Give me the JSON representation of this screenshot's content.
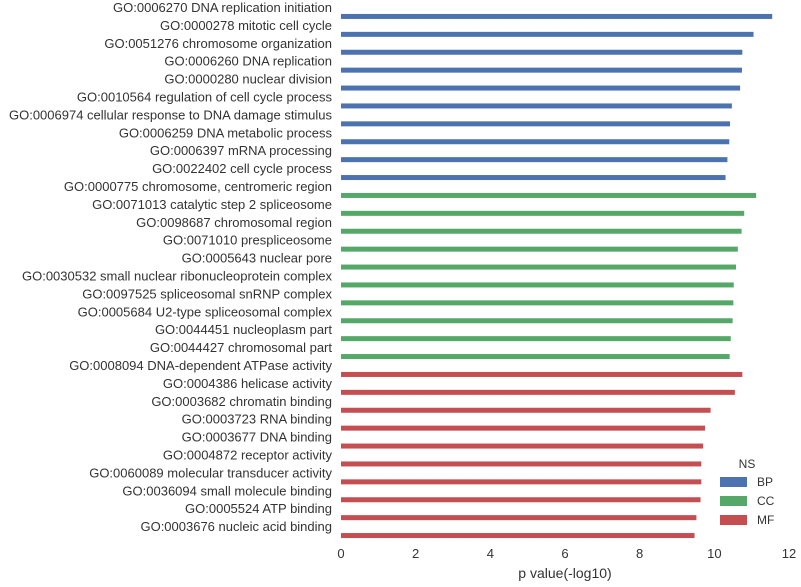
{
  "chart_data": {
    "type": "bar",
    "orientation": "horizontal",
    "xlabel": "p value(-log10)",
    "ylabel": "",
    "xlim": [
      0,
      12
    ],
    "xticks": [
      0,
      2,
      4,
      6,
      8,
      10,
      12
    ],
    "grid": false,
    "legend": {
      "title": "NS",
      "placement": "bottom-right",
      "entries": [
        {
          "name": "BP",
          "color": "#4c72b0"
        },
        {
          "name": "CC",
          "color": "#55a868"
        },
        {
          "name": "MF",
          "color": "#c44e52"
        }
      ]
    },
    "categories": [
      {
        "label": "GO:0006270 DNA replication initiation",
        "group": "BP",
        "value": 11.55
      },
      {
        "label": "GO:0000278 mitotic cell cycle",
        "group": "BP",
        "value": 11.05
      },
      {
        "label": "GO:0051276 chromosome organization",
        "group": "BP",
        "value": 10.75
      },
      {
        "label": "GO:0006260 DNA replication",
        "group": "BP",
        "value": 10.74
      },
      {
        "label": "GO:0000280 nuclear division",
        "group": "BP",
        "value": 10.69
      },
      {
        "label": "GO:0010564 regulation of cell cycle process",
        "group": "BP",
        "value": 10.47
      },
      {
        "label": "GO:0006974 cellular response to DNA damage stimulus",
        "group": "BP",
        "value": 10.42
      },
      {
        "label": "GO:0006259 DNA metabolic process",
        "group": "BP",
        "value": 10.4
      },
      {
        "label": "GO:0006397 mRNA processing",
        "group": "BP",
        "value": 10.35
      },
      {
        "label": "GO:0022402 cell cycle process",
        "group": "BP",
        "value": 10.3
      },
      {
        "label": "GO:0000775 chromosome, centromeric region",
        "group": "CC",
        "value": 11.12
      },
      {
        "label": "GO:0071013 catalytic step 2 spliceosome",
        "group": "CC",
        "value": 10.8
      },
      {
        "label": "GO:0098687 chromosomal region",
        "group": "CC",
        "value": 10.73
      },
      {
        "label": "GO:0071010 prespliceosome",
        "group": "CC",
        "value": 10.63
      },
      {
        "label": "GO:0005643 nuclear pore",
        "group": "CC",
        "value": 10.58
      },
      {
        "label": "GO:0030532 small nuclear ribonucleoprotein complex",
        "group": "CC",
        "value": 10.52
      },
      {
        "label": "GO:0097525 spliceosomal snRNP complex",
        "group": "CC",
        "value": 10.51
      },
      {
        "label": "GO:0005684 U2-type spliceosomal complex",
        "group": "CC",
        "value": 10.49
      },
      {
        "label": "GO:0044451 nucleoplasm part",
        "group": "CC",
        "value": 10.44
      },
      {
        "label": "GO:0044427 chromosomal part",
        "group": "CC",
        "value": 10.41
      },
      {
        "label": "GO:0008094 DNA-dependent ATPase activity",
        "group": "MF",
        "value": 10.75
      },
      {
        "label": "GO:0004386 helicase activity",
        "group": "MF",
        "value": 10.55
      },
      {
        "label": "GO:0003682 chromatin binding",
        "group": "MF",
        "value": 9.9
      },
      {
        "label": "GO:0003723 RNA binding",
        "group": "MF",
        "value": 9.75
      },
      {
        "label": "GO:0003677 DNA binding",
        "group": "MF",
        "value": 9.7
      },
      {
        "label": "GO:0004872 receptor activity",
        "group": "MF",
        "value": 9.65
      },
      {
        "label": "GO:0060089 molecular transducer activity",
        "group": "MF",
        "value": 9.65
      },
      {
        "label": "GO:0036094 small molecule binding",
        "group": "MF",
        "value": 9.63
      },
      {
        "label": "GO:0005524 ATP binding",
        "group": "MF",
        "value": 9.52
      },
      {
        "label": "GO:0003676 nucleic acid binding",
        "group": "MF",
        "value": 9.47
      }
    ]
  }
}
